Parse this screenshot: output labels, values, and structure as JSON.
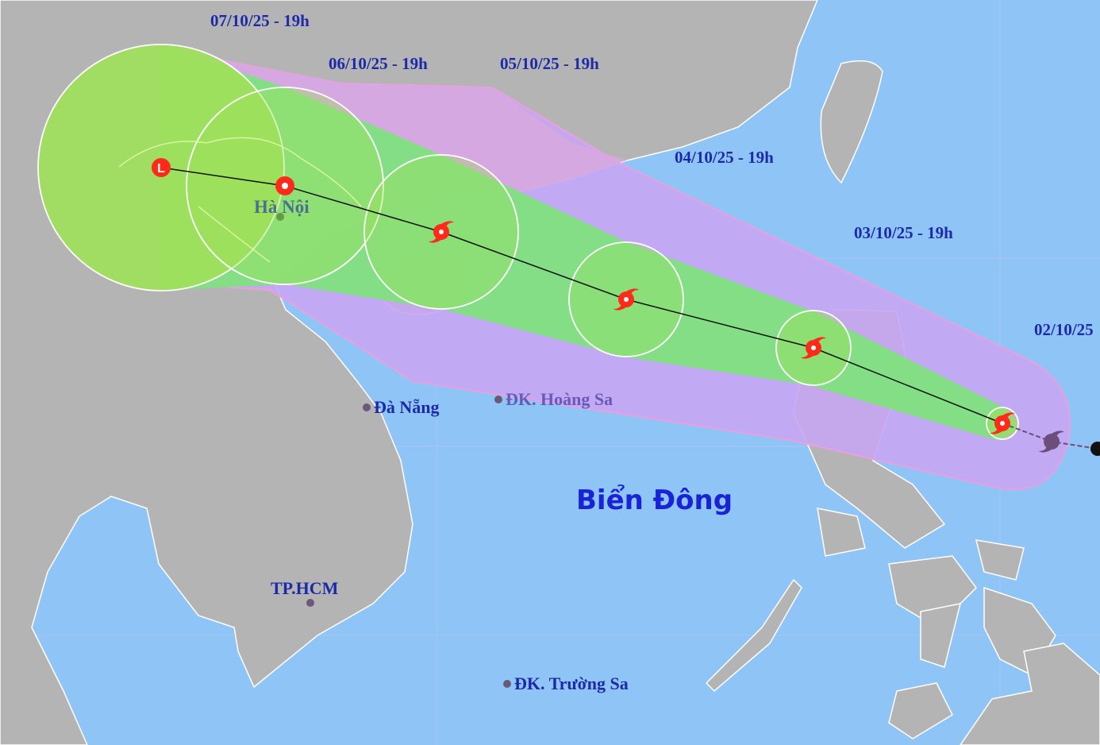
{
  "map": {
    "sea_label": "Biển Đông",
    "forecast_labels": [
      "07/10/25 - 19h",
      "06/10/25 - 19h",
      "05/10/25 - 19h",
      "04/10/25 - 19h",
      "03/10/25 - 19h",
      "02/10/25"
    ],
    "places": {
      "hanoi": "Hà Nội",
      "danang": "Đà Nẵng",
      "hoangsa": "ĐK. Hoàng Sa",
      "hcm": "TP.HCM",
      "truongsa": "ĐK. Trường Sa"
    },
    "storm_track_icons": [
      "low-pressure-icon",
      "typhoon-icon",
      "typhoon-icon",
      "typhoon-icon",
      "typhoon-icon",
      "typhoon-icon",
      "past-typhoon-icon",
      "past-position-icon"
    ],
    "low_pressure_letter": "L",
    "colors": {
      "sea": "#8fc4f7",
      "land": "#b4b4b4",
      "risk_zone": "#c7a6f2",
      "danger_cone": "#7fe07f",
      "wind_circle": "#9ee05a",
      "storm": "#ff2a1a",
      "text": "#1c2aa8"
    }
  }
}
